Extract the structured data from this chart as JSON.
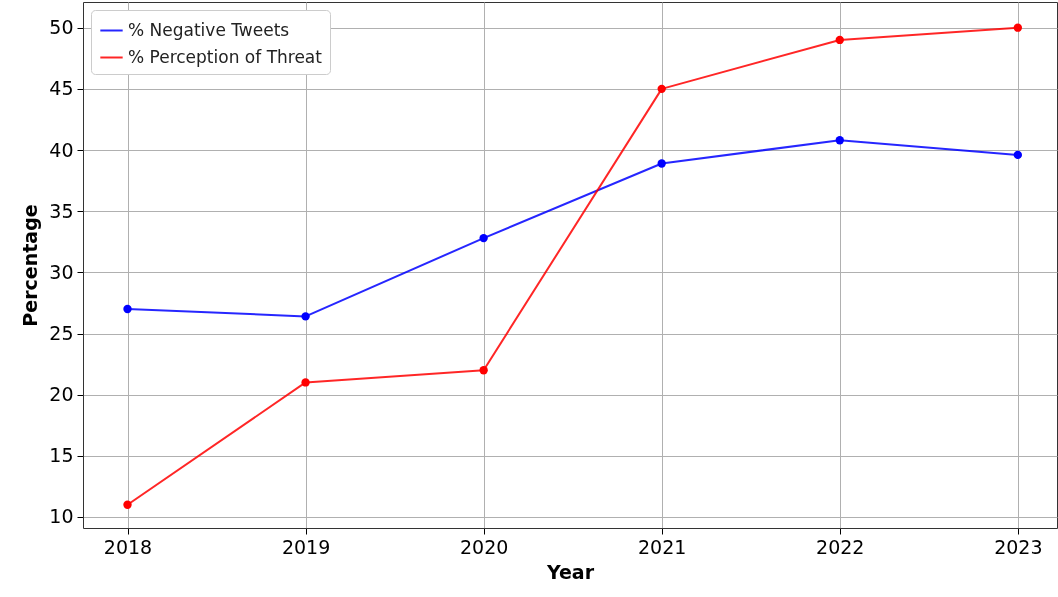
{
  "chart_data": {
    "type": "line",
    "xlabel": "Year",
    "ylabel": "Percentage",
    "x": [
      2018,
      2019,
      2020,
      2021,
      2022,
      2023
    ],
    "series": [
      {
        "name": "% Negative Tweets",
        "color": "#0000ff",
        "values": [
          27.0,
          26.4,
          32.8,
          38.9,
          40.8,
          39.6
        ]
      },
      {
        "name": "% Perception of Threat",
        "color": "#ff0000",
        "values": [
          11,
          21,
          22,
          45,
          49,
          50
        ]
      }
    ],
    "xlim": [
      2017.75,
      2023.22
    ],
    "xticks": [
      2018,
      2019,
      2020,
      2021,
      2022,
      2023
    ],
    "ylim": [
      9.1,
      52.1
    ],
    "yticks": [
      10,
      15,
      20,
      25,
      30,
      35,
      40,
      45,
      50
    ],
    "grid": true,
    "legend": "top left",
    "marker": "circle",
    "line_style": "solid"
  }
}
